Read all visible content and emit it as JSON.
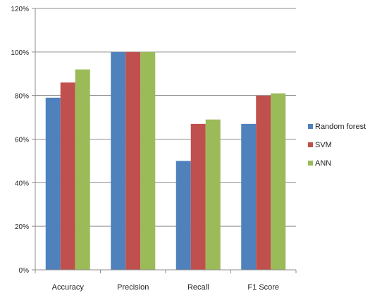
{
  "chart_data": {
    "type": "bar",
    "title": "",
    "xlabel": "",
    "ylabel": "",
    "ylim": [
      0,
      120
    ],
    "yticks": [
      0,
      20,
      40,
      60,
      80,
      100,
      120
    ],
    "ytick_labels": [
      "0%",
      "20%",
      "40%",
      "60%",
      "80%",
      "100%",
      "120%"
    ],
    "grid": true,
    "legend_position": "right",
    "categories": [
      "Accuracy",
      "Precision",
      "Recall",
      "F1 Score"
    ],
    "series": [
      {
        "name": "Random forest",
        "color": "#4f81bd",
        "values": [
          79,
          100,
          50,
          67
        ]
      },
      {
        "name": "SVM",
        "color": "#c0504d",
        "values": [
          86,
          100,
          67,
          80
        ]
      },
      {
        "name": "ANN",
        "color": "#9bbb59",
        "values": [
          92,
          100,
          69,
          81
        ]
      }
    ]
  }
}
